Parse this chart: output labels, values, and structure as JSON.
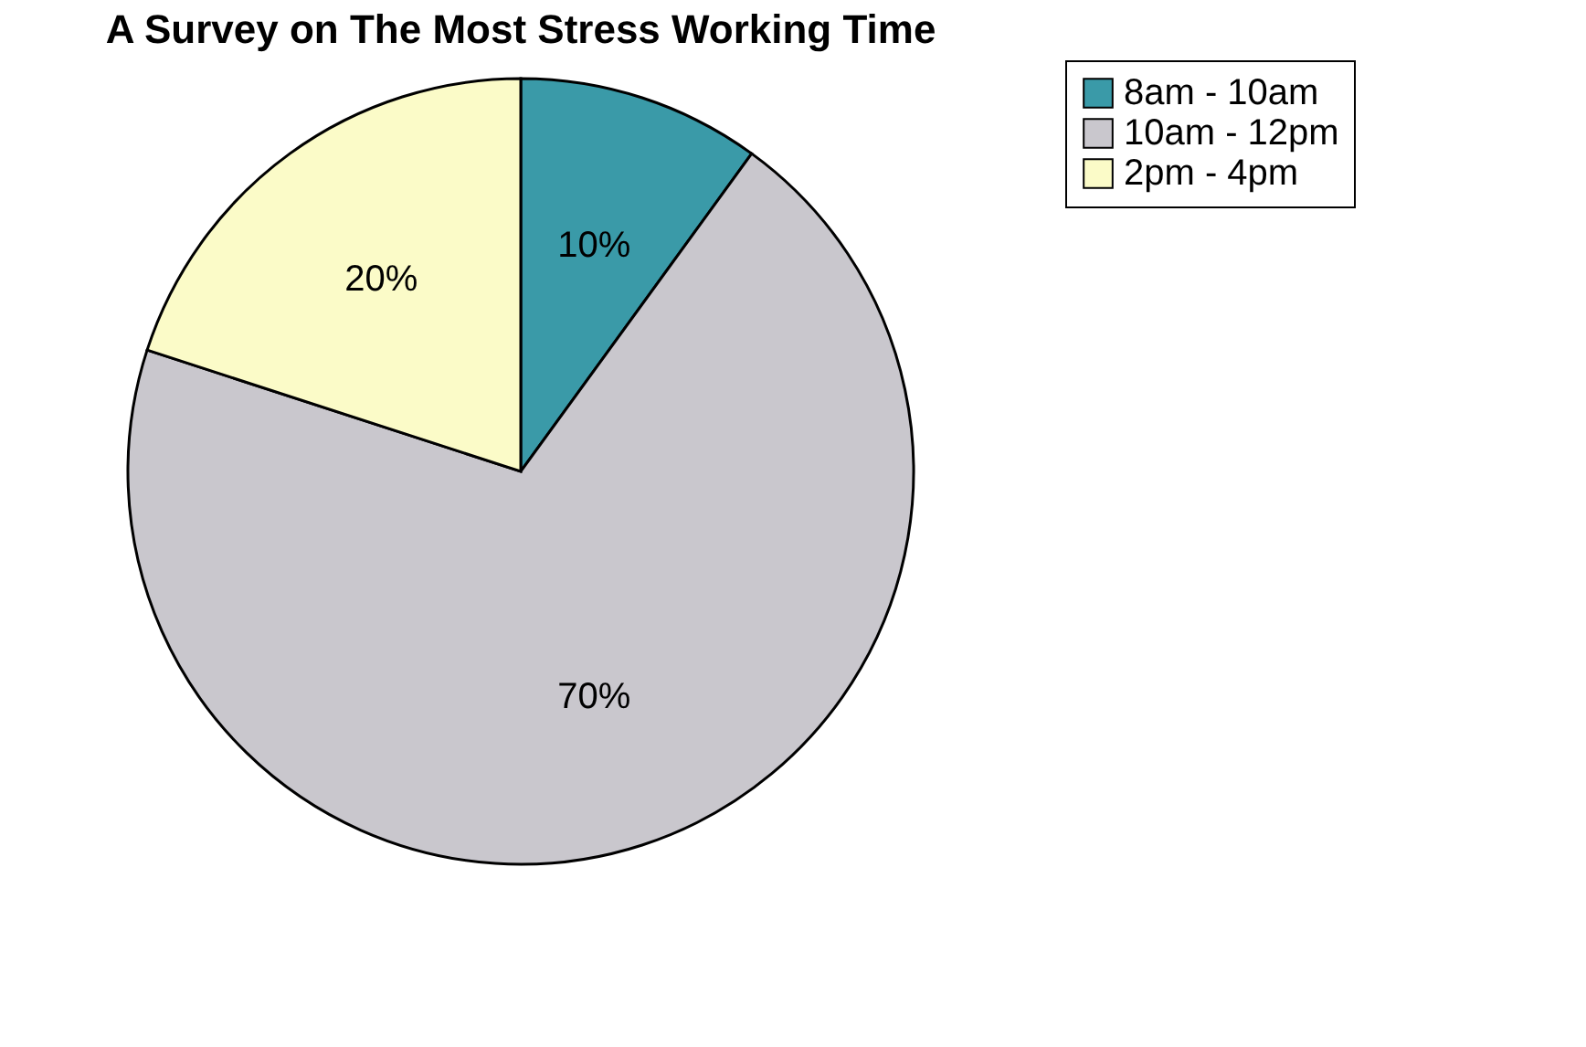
{
  "chart_data": {
    "type": "pie",
    "title": "A Survey on The Most Stress Working Time",
    "categories": [
      "8am - 10am",
      "10am - 12pm",
      "2pm - 4pm"
    ],
    "values": [
      10,
      70,
      20
    ],
    "colors": [
      "#3a9aa8",
      "#c9c7cd",
      "#fbfbc8"
    ],
    "value_labels": [
      "10%",
      "70%",
      "20%"
    ],
    "legend": "right"
  }
}
